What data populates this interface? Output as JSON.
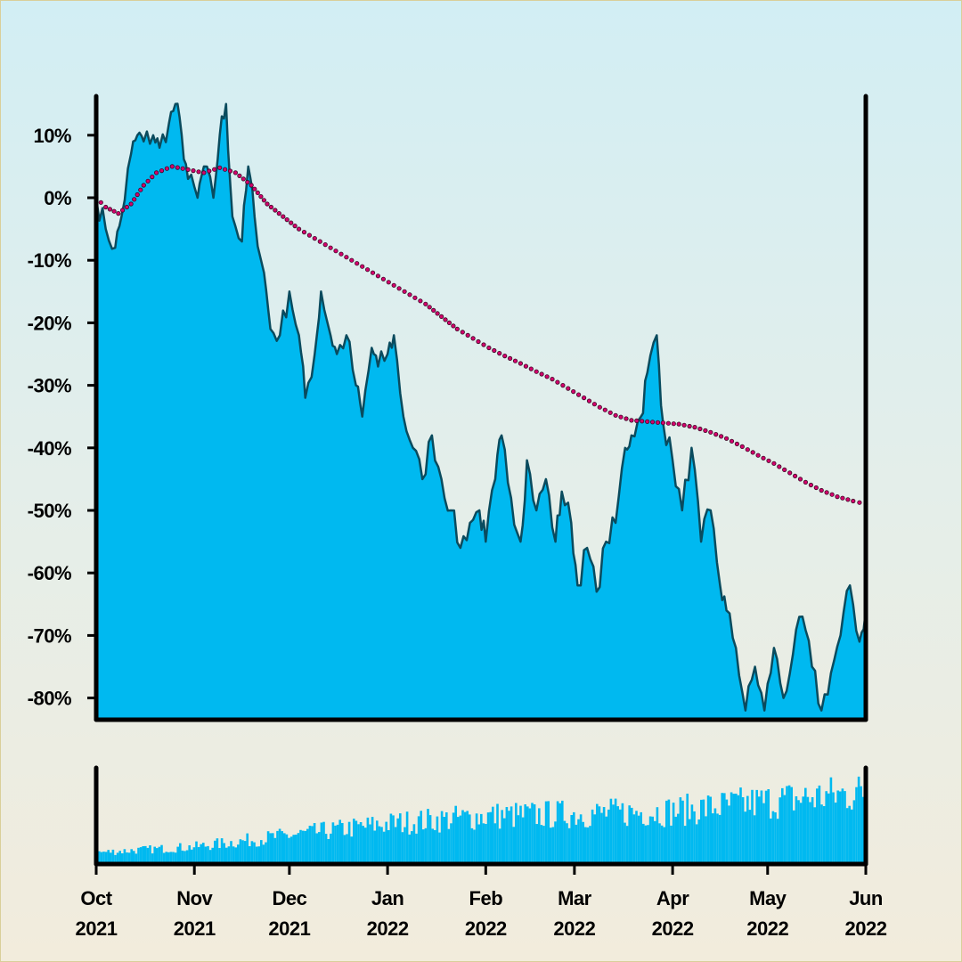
{
  "chart_data": [
    {
      "type": "area",
      "y_unit": "%",
      "ylim": [
        -84,
        16.5
      ],
      "y_ticks": [
        10,
        0,
        -10,
        -20,
        -30,
        -40,
        -50,
        -60,
        -70,
        -80
      ],
      "y_tick_labels": [
        "10%",
        "0%",
        "-10%",
        "-20%",
        "-30%",
        "-40%",
        "-50%",
        "-60%",
        "-70%",
        "-80%"
      ],
      "xlim": [
        "2021-10-01",
        "2022-06-01"
      ],
      "grid": false,
      "legend": "none",
      "series": [
        {
          "style": "filled-area",
          "color": "#00b9f0",
          "line_color": "#0a4b5e",
          "x": [
            "2021-10-01",
            "2021-10-04",
            "2021-10-07",
            "2021-10-09",
            "2021-10-12",
            "2021-10-14",
            "2021-10-16",
            "2021-10-19",
            "2021-10-21",
            "2021-10-24",
            "2021-10-26",
            "2021-10-28",
            "2021-10-30",
            "2021-11-02",
            "2021-11-04",
            "2021-11-07",
            "2021-11-09",
            "2021-11-11",
            "2021-11-13",
            "2021-11-16",
            "2021-11-18",
            "2021-11-20",
            "2021-11-23",
            "2021-11-25",
            "2021-11-28",
            "2021-12-01",
            "2021-12-04",
            "2021-12-06",
            "2021-12-09",
            "2021-12-11",
            "2021-12-14",
            "2021-12-16",
            "2021-12-19",
            "2021-12-22",
            "2021-12-24",
            "2021-12-27",
            "2021-12-29",
            "2022-01-01",
            "2022-01-03",
            "2022-01-06",
            "2022-01-09",
            "2022-01-12",
            "2022-01-15",
            "2022-01-18",
            "2022-01-21",
            "2022-01-24",
            "2022-01-27",
            "2022-01-30",
            "2022-02-01",
            "2022-02-04",
            "2022-02-06",
            "2022-02-09",
            "2022-02-12",
            "2022-02-14",
            "2022-02-17",
            "2022-02-20",
            "2022-02-23",
            "2022-02-25",
            "2022-02-28",
            "2022-03-02",
            "2022-03-05",
            "2022-03-08",
            "2022-03-11",
            "2022-03-14",
            "2022-03-17",
            "2022-03-19",
            "2022-03-22",
            "2022-03-24",
            "2022-03-27",
            "2022-03-29",
            "2022-04-01",
            "2022-04-04",
            "2022-04-07",
            "2022-04-10",
            "2022-04-13",
            "2022-04-16",
            "2022-04-18",
            "2022-04-21",
            "2022-04-24",
            "2022-04-27",
            "2022-04-30",
            "2022-05-03",
            "2022-05-06",
            "2022-05-09",
            "2022-05-12",
            "2022-05-15",
            "2022-05-18",
            "2022-05-21",
            "2022-05-24",
            "2022-05-27",
            "2022-05-30",
            "2022-06-01"
          ],
          "values": [
            0,
            -5,
            -8,
            -3,
            7,
            10,
            9,
            10,
            8,
            12,
            15,
            10,
            3,
            0,
            5,
            0,
            10,
            15,
            -3,
            -7,
            5,
            -3,
            -12,
            -21,
            -22,
            -15,
            -22,
            -32,
            -25,
            -15,
            -22,
            -25,
            -22,
            -30,
            -35,
            -24,
            -27,
            -25,
            -22,
            -35,
            -40,
            -45,
            -38,
            -45,
            -50,
            -56,
            -52,
            -50,
            -55,
            -45,
            -38,
            -48,
            -55,
            -42,
            -50,
            -45,
            -55,
            -47,
            -52,
            -62,
            -56,
            -63,
            -55,
            -52,
            -40,
            -38,
            -35,
            -28,
            -22,
            -36,
            -42,
            -50,
            -40,
            -55,
            -50,
            -62,
            -66,
            -72,
            -82,
            -75,
            -82,
            -72,
            -80,
            -73,
            -67,
            -75,
            -82,
            -76,
            -70,
            -62,
            -71,
            -66
          ]
        },
        {
          "style": "dotted-line",
          "color": "#d4006c",
          "x": [
            "2021-10-01",
            "2021-10-04",
            "2021-10-08",
            "2021-10-12",
            "2021-10-16",
            "2021-10-20",
            "2021-10-25",
            "2021-10-30",
            "2021-11-04",
            "2021-11-09",
            "2021-11-14",
            "2021-11-19",
            "2021-11-24",
            "2021-11-29",
            "2021-12-04",
            "2021-12-09",
            "2021-12-14",
            "2021-12-19",
            "2021-12-24",
            "2021-12-29",
            "2022-01-03",
            "2022-01-08",
            "2022-01-13",
            "2022-01-18",
            "2022-01-23",
            "2022-01-28",
            "2022-02-02",
            "2022-02-07",
            "2022-02-12",
            "2022-02-17",
            "2022-02-22",
            "2022-02-27",
            "2022-03-04",
            "2022-03-09",
            "2022-03-14",
            "2022-03-19",
            "2022-03-24",
            "2022-03-29",
            "2022-04-03",
            "2022-04-08",
            "2022-04-13",
            "2022-04-18",
            "2022-04-23",
            "2022-04-28",
            "2022-05-03",
            "2022-05-08",
            "2022-05-13",
            "2022-05-18",
            "2022-05-23",
            "2022-05-28",
            "2022-06-01"
          ],
          "values": [
            0,
            -1.5,
            -2.5,
            -1,
            2,
            4,
            5,
            4.5,
            4,
            4.8,
            4,
            2,
            -1,
            -3,
            -5,
            -6.5,
            -8,
            -9.5,
            -11,
            -12.5,
            -14,
            -15.5,
            -17,
            -19,
            -21,
            -22.5,
            -24,
            -25.3,
            -26.5,
            -27.8,
            -29,
            -30.5,
            -32,
            -33.5,
            -34.8,
            -35.6,
            -35.8,
            -36,
            -36.2,
            -36.7,
            -37.5,
            -38.5,
            -39.8,
            -41.2,
            -42.5,
            -44,
            -45.5,
            -46.8,
            -47.8,
            -48.5,
            -49
          ]
        }
      ]
    },
    {
      "type": "bar",
      "color": "#00b9f0",
      "xlim": [
        "2021-10-01",
        "2022-06-01"
      ],
      "x_ticks": [
        "2021-10-01",
        "2021-11-01",
        "2021-12-01",
        "2022-01-01",
        "2022-02-01",
        "2022-03-01",
        "2022-04-01",
        "2022-05-01",
        "2022-06-01"
      ],
      "x_tick_labels": [
        [
          "Oct",
          "2021"
        ],
        [
          "Nov",
          "2021"
        ],
        [
          "Dec",
          "2021"
        ],
        [
          "Jan",
          "2022"
        ],
        [
          "Feb",
          "2022"
        ],
        [
          "Mar",
          "2022"
        ],
        [
          "Apr",
          "2022"
        ],
        [
          "May",
          "2022"
        ],
        [
          "Jun",
          "2022"
        ]
      ],
      "trend_x": [
        "2021-10-01",
        "2021-11-01",
        "2021-12-01",
        "2022-01-01",
        "2022-02-01",
        "2022-03-01",
        "2022-04-01",
        "2022-05-01",
        "2022-06-01"
      ],
      "trend_level": [
        0.12,
        0.18,
        0.3,
        0.42,
        0.5,
        0.52,
        0.55,
        0.65,
        0.75
      ]
    }
  ]
}
